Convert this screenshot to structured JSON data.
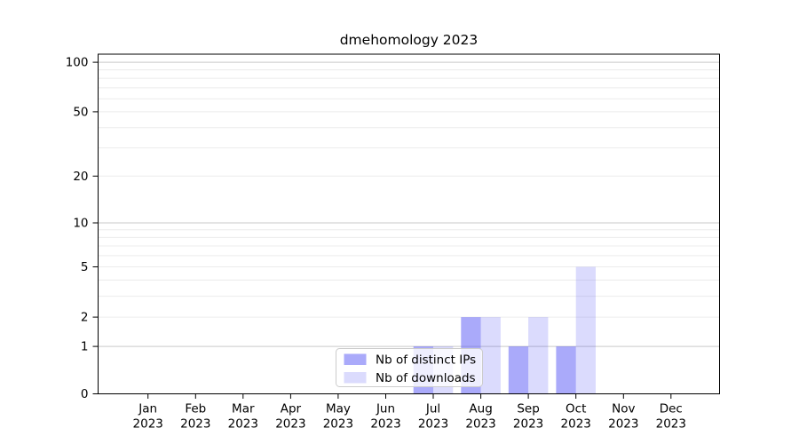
{
  "figure": {
    "background": "#ffffff"
  },
  "chart_data": {
    "type": "bar",
    "title": "dmehomology 2023",
    "categories": [
      "Jan 2023",
      "Feb 2023",
      "Mar 2023",
      "Apr 2023",
      "May 2023",
      "Jun 2023",
      "Jul 2023",
      "Aug 2023",
      "Sep 2023",
      "Oct 2023",
      "Nov 2023",
      "Dec 2023"
    ],
    "series": [
      {
        "name": "Nb of distinct IPs",
        "values": [
          0,
          0,
          0,
          0,
          0,
          0,
          1,
          2,
          1,
          1,
          0,
          0
        ],
        "color": "#aaaaf8",
        "fill_rgba": "rgba(85,85,245,0.5)"
      },
      {
        "name": "Nb of downloads",
        "values": [
          0,
          0,
          0,
          0,
          0,
          0,
          1,
          2,
          2,
          5,
          0,
          0
        ],
        "color": "#dcdcfb",
        "fill_rgba": "rgba(85,85,245,0.21)"
      }
    ],
    "xlabel": "",
    "ylabel": "",
    "yscale": "symlog (log(1+y))",
    "ylim": [
      0,
      112
    ],
    "y_ticks": [
      0,
      1,
      2,
      5,
      10,
      20,
      50,
      100
    ],
    "grid": "horizontal major+minor, log decades",
    "legend": {
      "position": "lower center",
      "entries": [
        "Nb of distinct IPs",
        "Nb of downloads"
      ]
    }
  }
}
